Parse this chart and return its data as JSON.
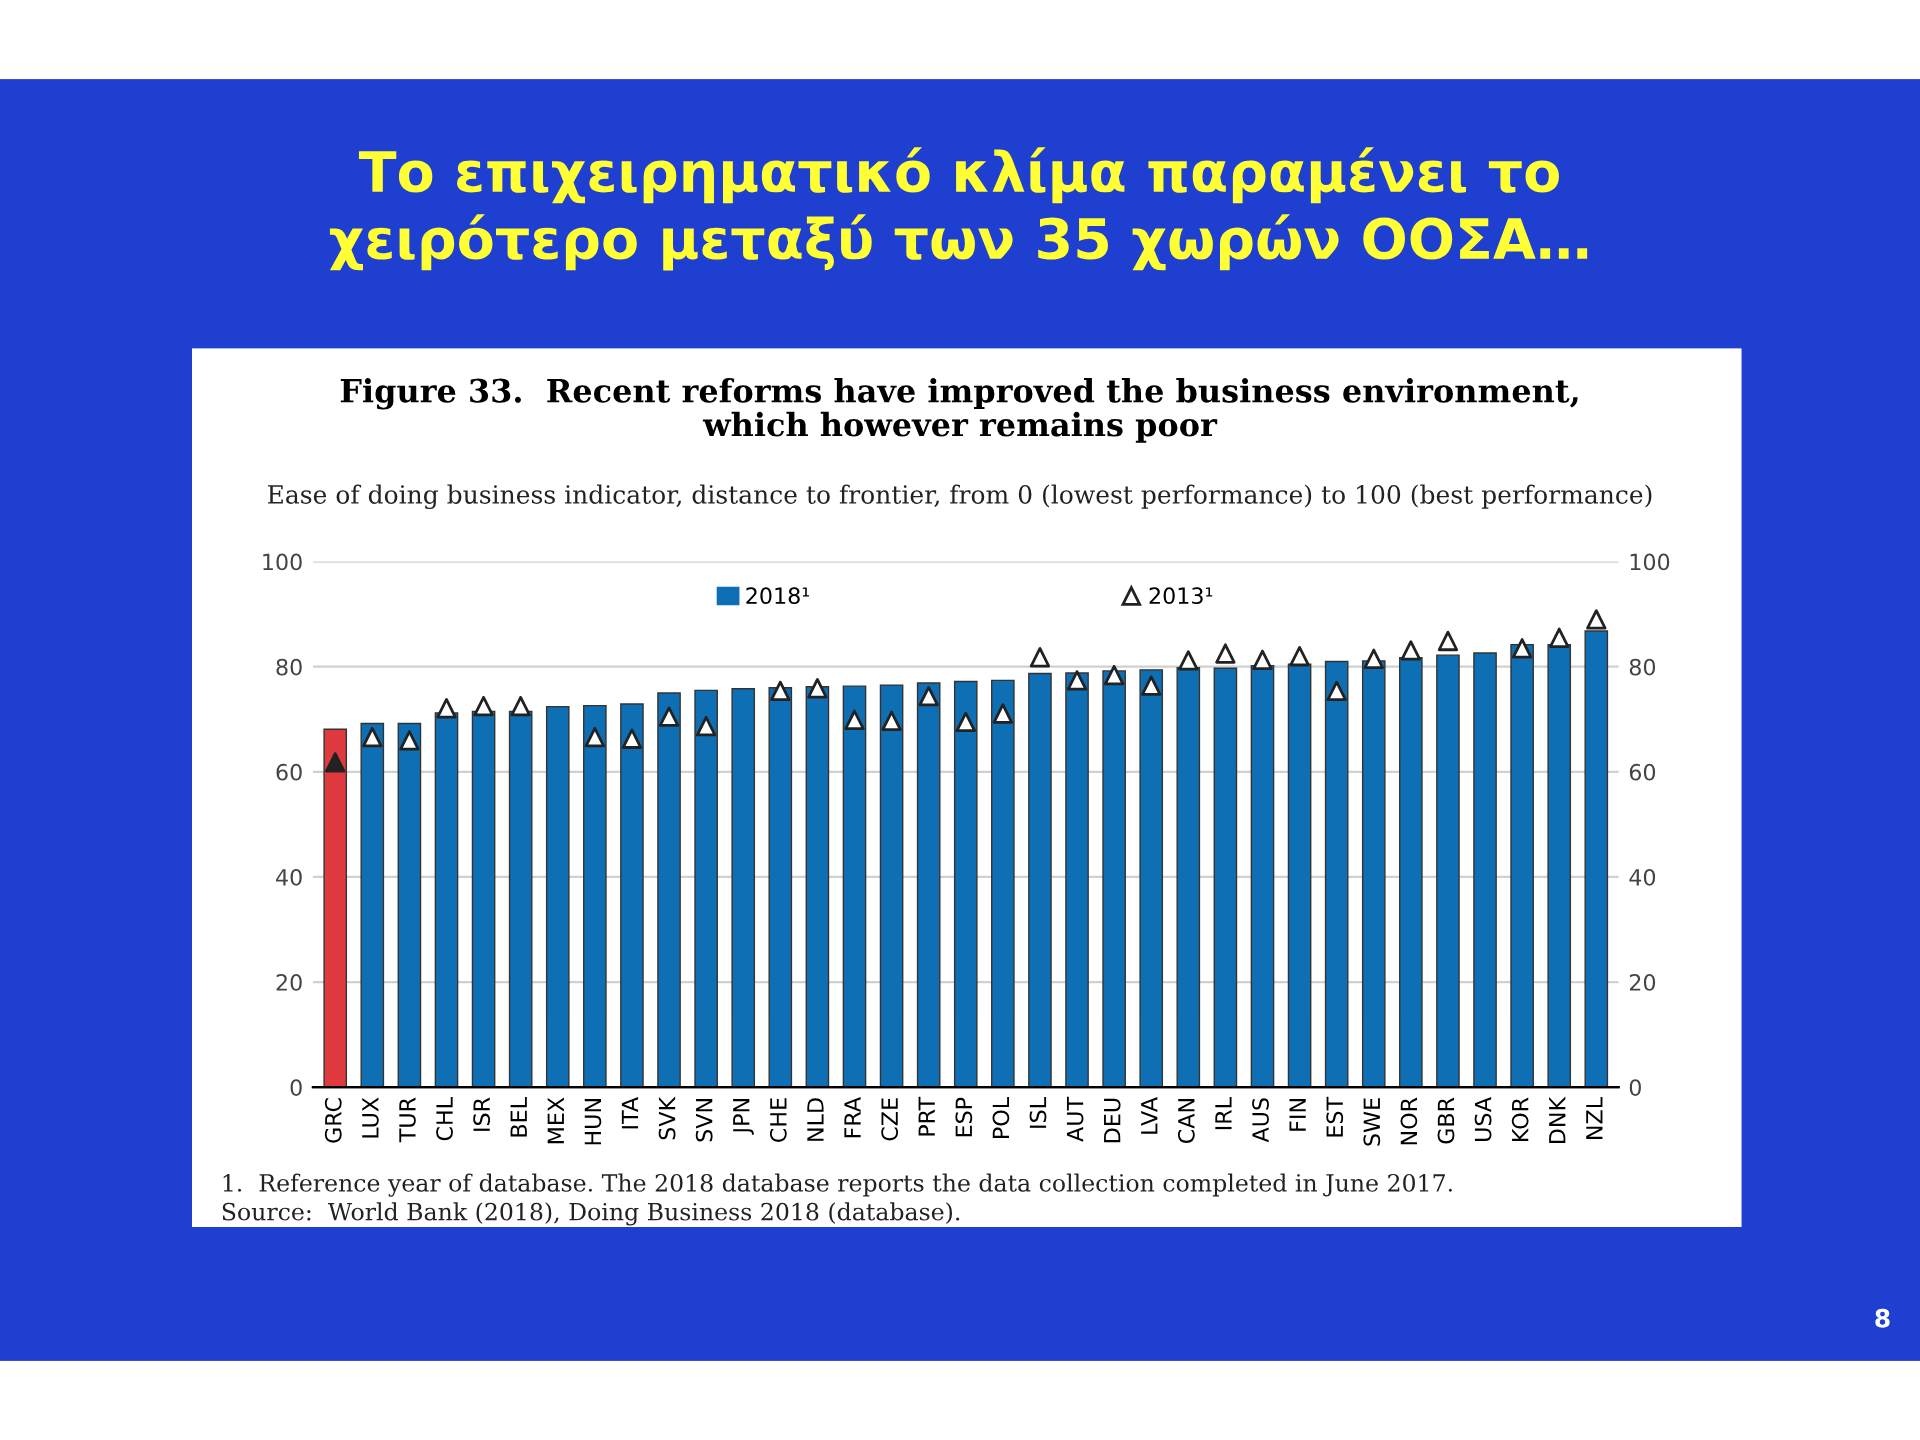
{
  "chart_data": {
    "type": "bar",
    "title": "Το επιχειρηματικό κλίμα παραμένει το\nχειρότερο μεταξύ των 35 χωρών ΟΟΣΑ…",
    "subtitle": "Figure 33.  Recent reforms have improved the business environment,\nwhich however remains poor",
    "annotations": [
      "Ease of doing business indicator, distance to frontier, from 0 (lowest performance) to 100 (best performance)",
      "1.  Reference year of database. The 2018 database reports the data collection completed in June 2017.",
      "Source:  World Bank (2018), Doing Business 2018 (database).",
      "8"
    ],
    "categories": [
      "GRC",
      "LUX",
      "TUR",
      "CHL",
      "ISR",
      "BEL",
      "MEX",
      "HUN",
      "ITA",
      "SVK",
      "SVN",
      "JPN",
      "CHE",
      "NLD",
      "FRA",
      "CZE",
      "PRT",
      "ESP",
      "POL",
      "ISL",
      "AUT",
      "DEU",
      "LVA",
      "CAN",
      "IRL",
      "AUS",
      "FIN",
      "EST",
      "SWE",
      "NOR",
      "GBR",
      "USA",
      "KOR",
      "DNK",
      "NZL"
    ],
    "series": [
      {
        "name": "2018¹",
        "color": "#0f6fb5",
        "colors": [
          "#e0393e",
          "#0f6fb5",
          "#0f6fb5",
          "#0f6fb5",
          "#0f6fb5",
          "#0f6fb5",
          "#0f6fb5",
          "#0f6fb5",
          "#0f6fb5",
          "#0f6fb5",
          "#0f6fb5",
          "#0f6fb5",
          "#0f6fb5",
          "#0f6fb5",
          "#0f6fb5",
          "#0f6fb5",
          "#0f6fb5",
          "#0f6fb5",
          "#0f6fb5",
          "#0f6fb5",
          "#0f6fb5",
          "#0f6fb5",
          "#0f6fb5",
          "#0f6fb5",
          "#0f6fb5",
          "#0f6fb5",
          "#0f6fb5",
          "#0f6fb5",
          "#0f6fb5",
          "#0f6fb5",
          "#0f6fb5",
          "#0f6fb5",
          "#0f6fb5",
          "#0f6fb5",
          "#0f6fb5"
        ],
        "values": [
          68.1,
          69.2,
          69.2,
          71.2,
          71.5,
          71.5,
          72.4,
          72.6,
          72.9,
          75.0,
          75.5,
          75.8,
          76.0,
          76.2,
          76.3,
          76.5,
          76.9,
          77.2,
          77.4,
          78.7,
          78.8,
          79.2,
          79.4,
          79.8,
          79.7,
          80.2,
          80.5,
          81.0,
          81.1,
          81.7,
          82.2,
          82.6,
          84.2,
          84.2,
          86.8
        ]
      },
      {
        "name": "2013¹",
        "type": "scatter",
        "marker": "triangle",
        "color": "#ffffff",
        "colors": [
          "#222222",
          "#ffffff",
          "#ffffff",
          "#ffffff",
          "#ffffff",
          "#ffffff",
          "#ffffff",
          "#ffffff",
          "#ffffff",
          "#ffffff",
          "#ffffff",
          "#ffffff",
          "#ffffff",
          "#ffffff",
          "#ffffff",
          "#ffffff",
          "#ffffff",
          "#ffffff",
          "#ffffff",
          "#ffffff",
          "#ffffff",
          "#ffffff",
          "#ffffff",
          "#ffffff",
          "#ffffff",
          "#ffffff",
          "#ffffff",
          "#ffffff",
          "#ffffff",
          "#ffffff",
          "#ffffff",
          "#ffffff",
          "#ffffff",
          "#ffffff",
          "#ffffff"
        ],
        "x": [
          "GRC",
          "LUX",
          "TUR",
          "CHL",
          "ISR",
          "BEL",
          "MEX",
          "HUN",
          "ITA",
          "SVK",
          "SVN",
          "JPN",
          "CHE",
          "NLD",
          "FRA",
          "CZE",
          "PRT",
          "ESP",
          "POL",
          "ISL",
          "AUT",
          "DEU",
          "LVA",
          "CAN",
          "IRL",
          "AUS",
          "FIN",
          "EST",
          "SWE",
          "NOR",
          "GBR",
          "USA",
          "KOR",
          "DNK",
          "NZL"
        ],
        "values": [
          61.8,
          66.6,
          66.0,
          72.1,
          72.5,
          72.5,
          null,
          66.6,
          66.3,
          70.5,
          68.7,
          null,
          75.4,
          75.9,
          69.9,
          69.7,
          74.4,
          69.5,
          71.1,
          81.8,
          77.4,
          78.4,
          76.4,
          81.2,
          82.5,
          81.3,
          82.0,
          75.4,
          81.5,
          83.1,
          84.9,
          null,
          83.5,
          85.5,
          89.0
        ]
      }
    ],
    "ylim": [
      0,
      100
    ],
    "yticks": [
      0,
      20,
      40,
      60,
      80,
      100
    ],
    "y2lim": [
      0,
      100
    ],
    "y2ticks": [
      0,
      20,
      40,
      60,
      80,
      100
    ],
    "grid": "y",
    "legend": "top"
  }
}
